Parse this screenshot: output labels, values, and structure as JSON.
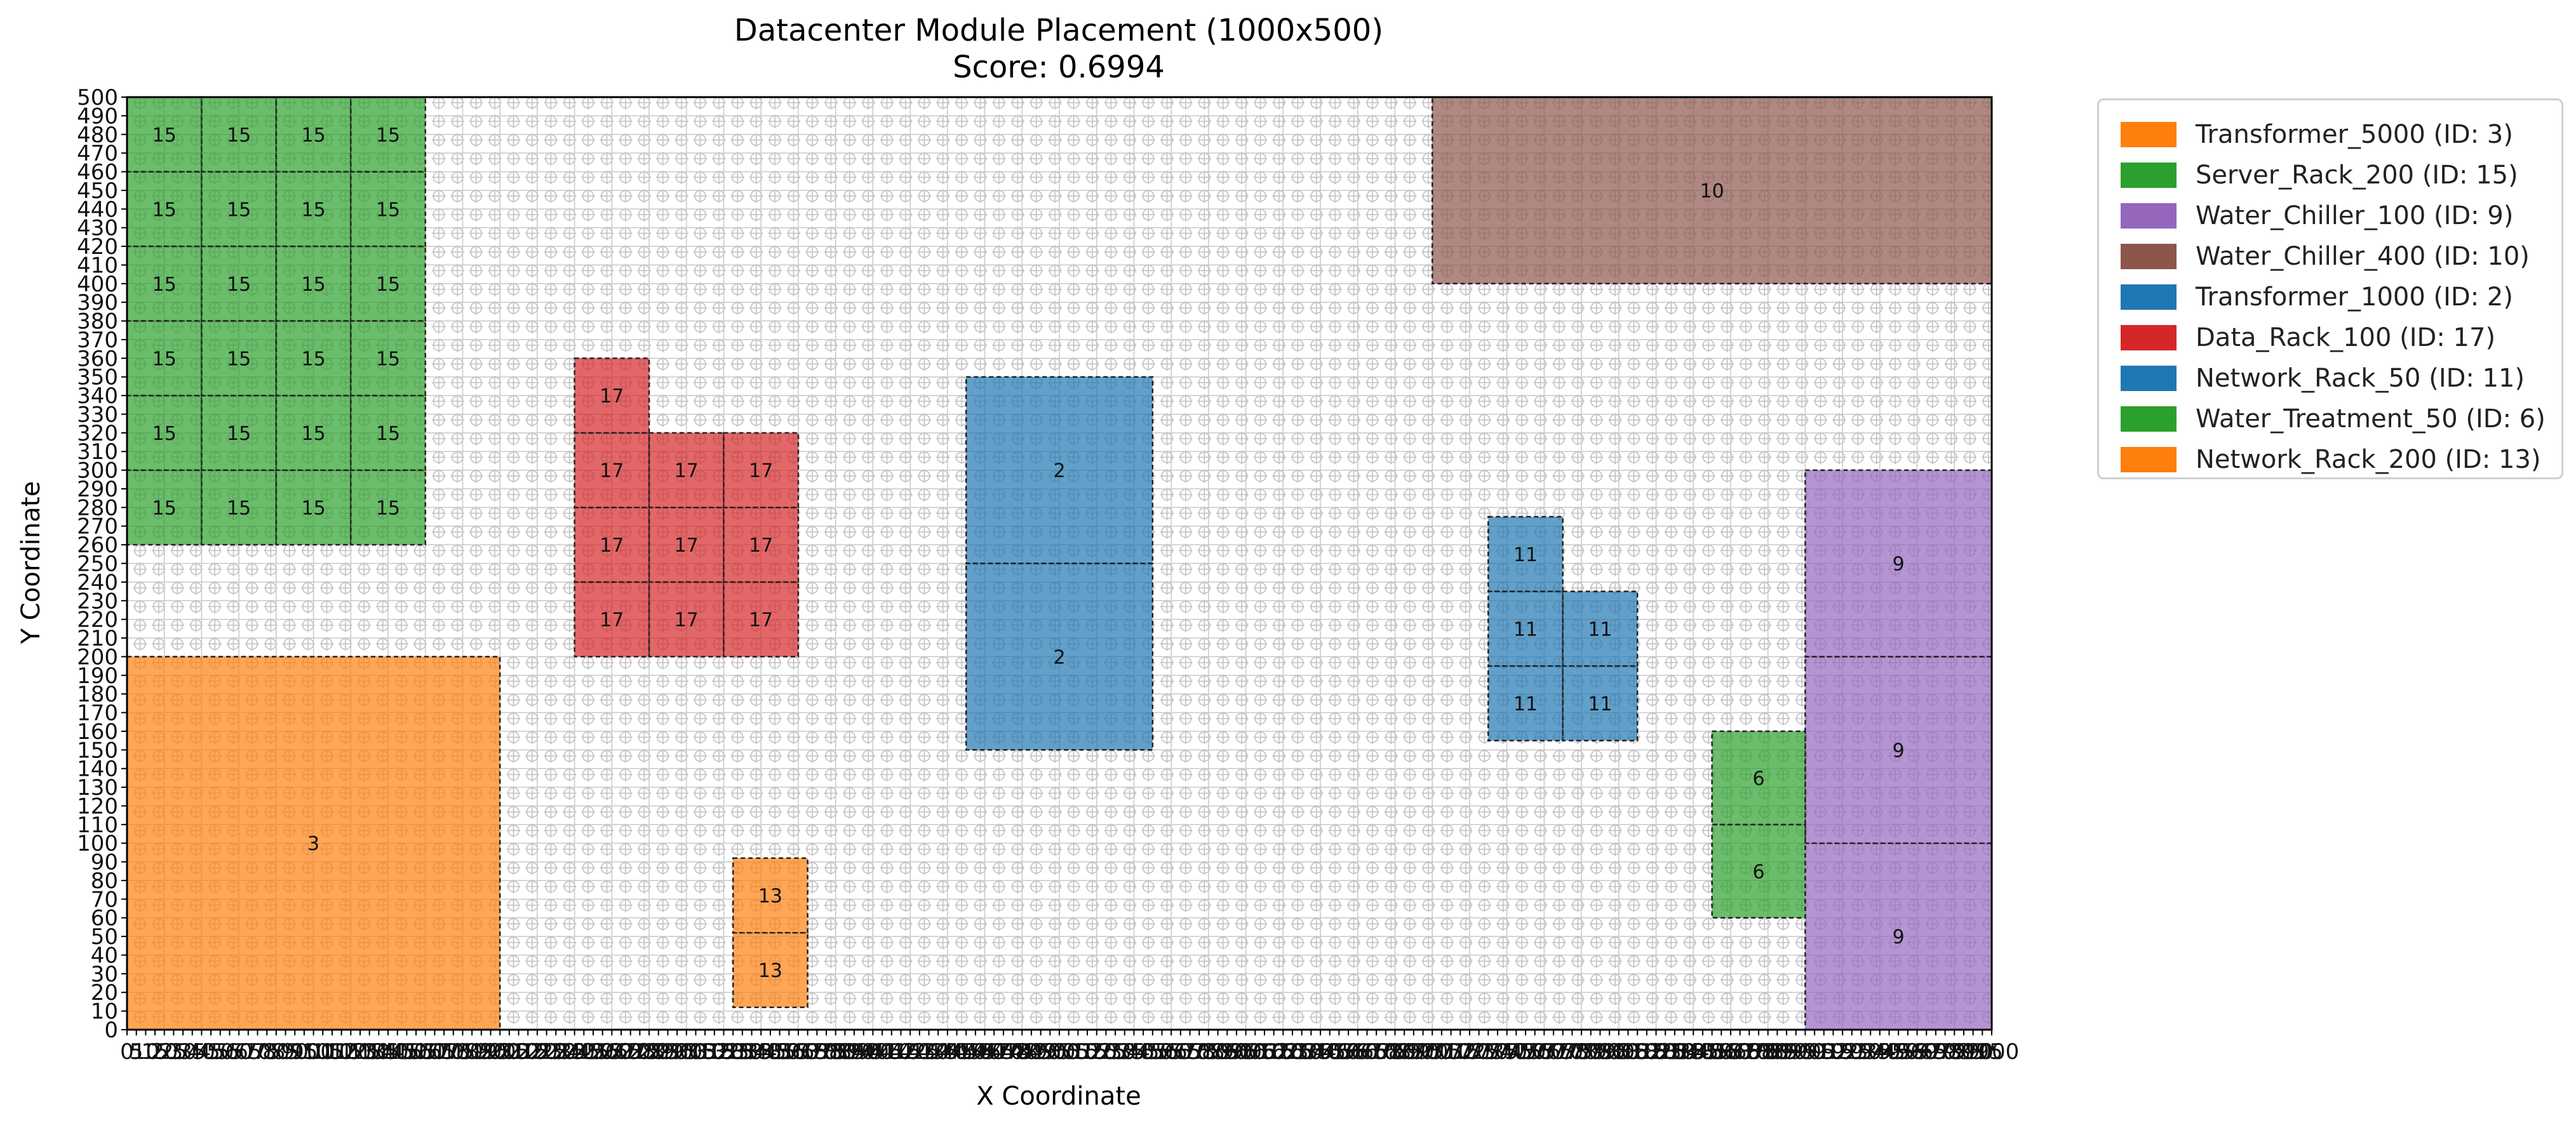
{
  "chart_data": {
    "type": "module-placement",
    "title": "Datacenter Module Placement (1000x500)",
    "subtitle": "Score: 0.6994",
    "xlabel": "X Coordinate",
    "ylabel": "Y Coordinate",
    "xlim": [
      0,
      1000
    ],
    "ylim": [
      0,
      500
    ],
    "x_tick_step": 5,
    "y_tick_step": 10,
    "grid": true,
    "legend_position": "outside-right",
    "modules": [
      {
        "name": "Transformer_5000",
        "id": 3,
        "color": "#ff7f0e",
        "rects": [
          [
            0,
            0,
            200,
            200
          ]
        ]
      },
      {
        "name": "Server_Rack_200",
        "id": 15,
        "color": "#2ca02c",
        "rects": [
          [
            0,
            260,
            40,
            40
          ],
          [
            40,
            260,
            40,
            40
          ],
          [
            80,
            260,
            40,
            40
          ],
          [
            120,
            260,
            40,
            40
          ],
          [
            0,
            300,
            40,
            40
          ],
          [
            40,
            300,
            40,
            40
          ],
          [
            80,
            300,
            40,
            40
          ],
          [
            120,
            300,
            40,
            40
          ],
          [
            0,
            340,
            40,
            40
          ],
          [
            40,
            340,
            40,
            40
          ],
          [
            80,
            340,
            40,
            40
          ],
          [
            120,
            340,
            40,
            40
          ],
          [
            0,
            380,
            40,
            40
          ],
          [
            40,
            380,
            40,
            40
          ],
          [
            80,
            380,
            40,
            40
          ],
          [
            120,
            380,
            40,
            40
          ],
          [
            0,
            420,
            40,
            40
          ],
          [
            40,
            420,
            40,
            40
          ],
          [
            80,
            420,
            40,
            40
          ],
          [
            120,
            420,
            40,
            40
          ],
          [
            0,
            460,
            40,
            40
          ],
          [
            40,
            460,
            40,
            40
          ],
          [
            80,
            460,
            40,
            40
          ],
          [
            120,
            460,
            40,
            40
          ]
        ]
      },
      {
        "name": "Water_Chiller_100",
        "id": 9,
        "color": "#9467bd",
        "rects": [
          [
            900,
            0,
            100,
            100
          ],
          [
            900,
            100,
            100,
            100
          ],
          [
            900,
            200,
            100,
            100
          ]
        ]
      },
      {
        "name": "Water_Chiller_400",
        "id": 10,
        "color": "#8c564b",
        "rects": [
          [
            700,
            400,
            300,
            100
          ]
        ]
      },
      {
        "name": "Transformer_1000",
        "id": 2,
        "color": "#1f77b4",
        "rects": [
          [
            450,
            150,
            100,
            100
          ],
          [
            450,
            250,
            100,
            100
          ]
        ]
      },
      {
        "name": "Data_Rack_100",
        "id": 17,
        "color": "#d62728",
        "rects": [
          [
            240,
            200,
            40,
            40
          ],
          [
            280,
            200,
            40,
            40
          ],
          [
            320,
            200,
            40,
            40
          ],
          [
            240,
            240,
            40,
            40
          ],
          [
            280,
            240,
            40,
            40
          ],
          [
            320,
            240,
            40,
            40
          ],
          [
            240,
            280,
            40,
            40
          ],
          [
            280,
            280,
            40,
            40
          ],
          [
            320,
            280,
            40,
            40
          ],
          [
            240,
            320,
            40,
            40
          ]
        ]
      },
      {
        "name": "Network_Rack_50",
        "id": 11,
        "color": "#1f77b4",
        "rects": [
          [
            730,
            155,
            40,
            40
          ],
          [
            770,
            155,
            40,
            40
          ],
          [
            730,
            195,
            40,
            40
          ],
          [
            770,
            195,
            40,
            40
          ],
          [
            730,
            235,
            40,
            40
          ]
        ]
      },
      {
        "name": "Water_Treatment_50",
        "id": 6,
        "color": "#2ca02c",
        "rects": [
          [
            850,
            60,
            50,
            50
          ],
          [
            850,
            110,
            50,
            50
          ]
        ]
      },
      {
        "name": "Network_Rack_200",
        "id": 13,
        "color": "#ff7f0e",
        "rects": [
          [
            325,
            12,
            40,
            40
          ],
          [
            325,
            52,
            40,
            40
          ]
        ]
      }
    ]
  },
  "legend": {
    "items": [
      {
        "label": "Transformer_5000 (ID: 3)",
        "color": "#ff7f0e"
      },
      {
        "label": "Server_Rack_200 (ID: 15)",
        "color": "#2ca02c"
      },
      {
        "label": "Water_Chiller_100 (ID: 9)",
        "color": "#9467bd"
      },
      {
        "label": "Water_Chiller_400 (ID: 10)",
        "color": "#8c564b"
      },
      {
        "label": "Transformer_1000 (ID: 2)",
        "color": "#1f77b4"
      },
      {
        "label": "Data_Rack_100 (ID: 17)",
        "color": "#d62728"
      },
      {
        "label": "Network_Rack_50 (ID: 11)",
        "color": "#1f77b4"
      },
      {
        "label": "Water_Treatment_50 (ID: 6)",
        "color": "#2ca02c"
      },
      {
        "label": "Network_Rack_200 (ID: 13)",
        "color": "#ff7f0e"
      }
    ]
  }
}
